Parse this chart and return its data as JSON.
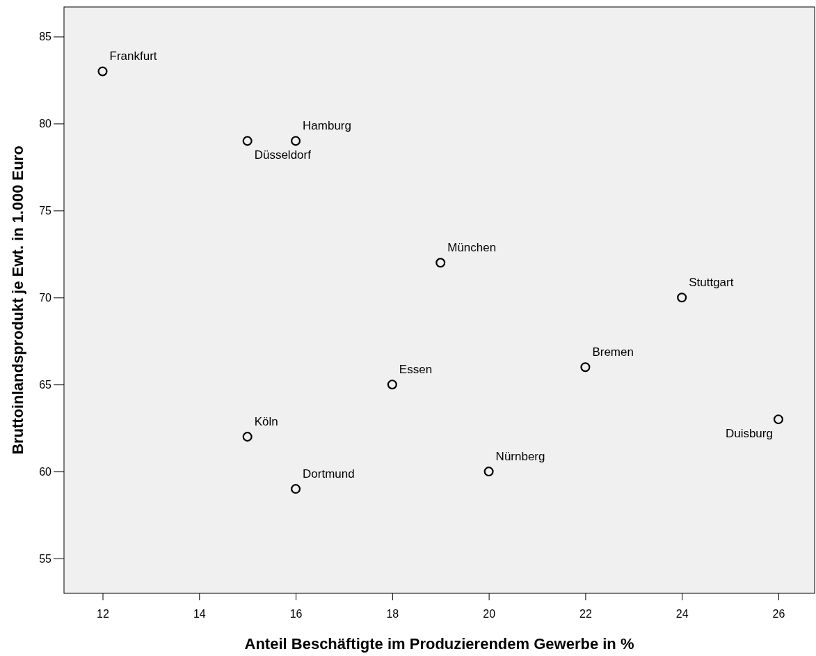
{
  "chart_data": {
    "type": "scatter",
    "xlabel": "Anteil Beschäftigte im Produzierendem Gewerbe in %",
    "ylabel": "Bruttoinlandsprodukt je Ewt. in 1.000 Euro",
    "x": [
      12,
      16,
      15,
      19,
      24,
      22,
      18,
      15,
      16,
      20,
      26
    ],
    "values": [
      83,
      79,
      79,
      72,
      70,
      66,
      65,
      62,
      59,
      60,
      63
    ],
    "color": "#000000",
    "marker": "circle",
    "grid": false,
    "xlim": [
      11.2,
      26.75
    ],
    "xticks": [
      12,
      14,
      16,
      18,
      20,
      22,
      24,
      26
    ],
    "ylim": [
      53,
      86.7
    ],
    "yticks": [
      55,
      60,
      65,
      70,
      75,
      80,
      85
    ],
    "annotations": [
      {
        "text": "Frankfurt",
        "x": 12,
        "y": 83
      },
      {
        "text": "Hamburg",
        "x": 16,
        "y": 79
      },
      {
        "text": "Düsseldorf",
        "x": 15,
        "y": 79
      },
      {
        "text": "München",
        "x": 19,
        "y": 72
      },
      {
        "text": "Stuttgart",
        "x": 24,
        "y": 70
      },
      {
        "text": "Bremen",
        "x": 22,
        "y": 66
      },
      {
        "text": "Essen",
        "x": 18,
        "y": 65
      },
      {
        "text": "Köln",
        "x": 15,
        "y": 62
      },
      {
        "text": "Dortmund",
        "x": 16,
        "y": 59
      },
      {
        "text": "Nürnberg",
        "x": 20,
        "y": 60
      },
      {
        "text": "Duisburg",
        "x": 26,
        "y": 63
      }
    ]
  }
}
